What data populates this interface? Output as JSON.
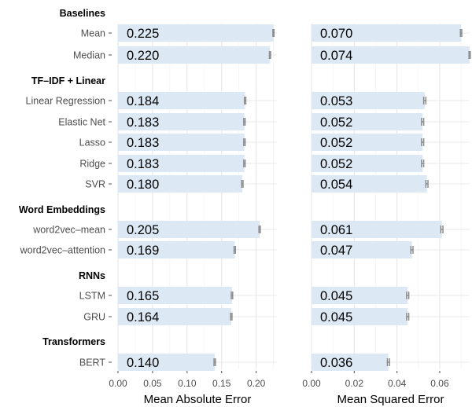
{
  "chart_data": {
    "type": "bar",
    "orientation": "horizontal",
    "grid": true,
    "bar_color": "#dce9f5",
    "errorbar_color": "#8c8c8c",
    "groups": [
      {
        "name": "Baselines",
        "models": [
          "Mean",
          "Median"
        ]
      },
      {
        "name": "TF–IDF + Linear",
        "models": [
          "Linear Regression",
          "Elastic Net",
          "Lasso",
          "Ridge",
          "SVR"
        ]
      },
      {
        "name": "Word Embeddings",
        "models": [
          "word2vec–mean",
          "word2vec–attention"
        ]
      },
      {
        "name": "RNNs",
        "models": [
          "LSTM",
          "GRU"
        ]
      },
      {
        "name": "Transformers",
        "models": [
          "BERT"
        ]
      }
    ],
    "panels": [
      {
        "xlabel": "Mean Absolute Error",
        "xlim": [
          0,
          0.23
        ],
        "xticks": [
          0,
          0.05,
          0.1,
          0.15,
          0.2
        ],
        "xtick_labels": [
          "0.00",
          "0.05",
          "0.10",
          "0.15",
          "0.20"
        ],
        "value_labels": [
          "0.225",
          "0.220",
          "0.184",
          "0.183",
          "0.183",
          "0.183",
          "0.180",
          "0.205",
          "0.169",
          "0.165",
          "0.164",
          "0.140"
        ],
        "values": [
          0.225,
          0.22,
          0.184,
          0.183,
          0.183,
          0.183,
          0.18,
          0.205,
          0.169,
          0.165,
          0.164,
          0.14
        ],
        "errors": [
          0.0008,
          0.0008,
          0.001,
          0.001,
          0.001,
          0.001,
          0.001,
          0.001,
          0.001,
          0.001,
          0.001,
          0.001
        ]
      },
      {
        "xlabel": "Mean Squared Error",
        "xlim": [
          0,
          0.074
        ],
        "xticks": [
          0,
          0.02,
          0.04,
          0.06
        ],
        "xtick_labels": [
          "0.00",
          "0.02",
          "0.04",
          "0.06"
        ],
        "value_labels": [
          "0.070",
          "0.074",
          "0.053",
          "0.052",
          "0.052",
          "0.052",
          "0.054",
          "0.061",
          "0.047",
          "0.045",
          "0.045",
          "0.036"
        ],
        "values": [
          0.07,
          0.074,
          0.053,
          0.052,
          0.052,
          0.052,
          0.054,
          0.061,
          0.047,
          0.045,
          0.045,
          0.036
        ],
        "errors": [
          0.0003,
          0.0003,
          0.0005,
          0.0005,
          0.0005,
          0.0005,
          0.0005,
          0.0005,
          0.0005,
          0.0005,
          0.0005,
          0.0005
        ]
      }
    ]
  }
}
